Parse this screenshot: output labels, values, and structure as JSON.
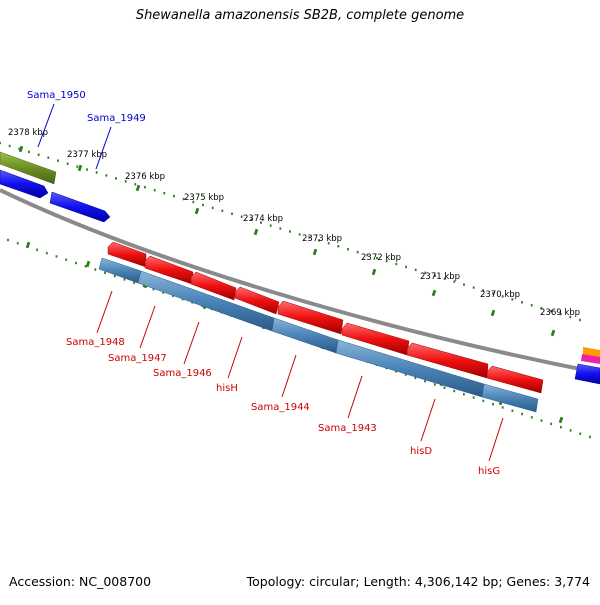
{
  "title": "Shewanella amazonensis SB2B, complete genome",
  "footer": {
    "accession": "Accession: NC_008700",
    "topology": "Topology: circular; Length: 4,306,142 bp; Genes: 3,774"
  },
  "colors": {
    "forward_gene_label": "#0000cc",
    "reverse_gene_label": "#cc0000",
    "forward_gene": "#1010ee",
    "reverse_gene": "#ee1010",
    "reverse_cds": "#4a84b8",
    "olive_feature": "#6b8e23",
    "backbone": "#888888",
    "tick": "#2e7d1e"
  },
  "scale_labels": [
    "2378 kbp",
    "2377 kbp",
    "2376 kbp",
    "2375 kbp",
    "2374 kbp",
    "2373 kbp",
    "2372 kbp",
    "2371 kbp",
    "2370 kbp",
    "2369 kbp"
  ],
  "forward_genes": [
    "Sama_1950",
    "Sama_1949"
  ],
  "reverse_genes": [
    "Sama_1948",
    "Sama_1947",
    "Sama_1946",
    "hisH",
    "Sama_1944",
    "Sama_1943",
    "hisD",
    "hisG"
  ]
}
